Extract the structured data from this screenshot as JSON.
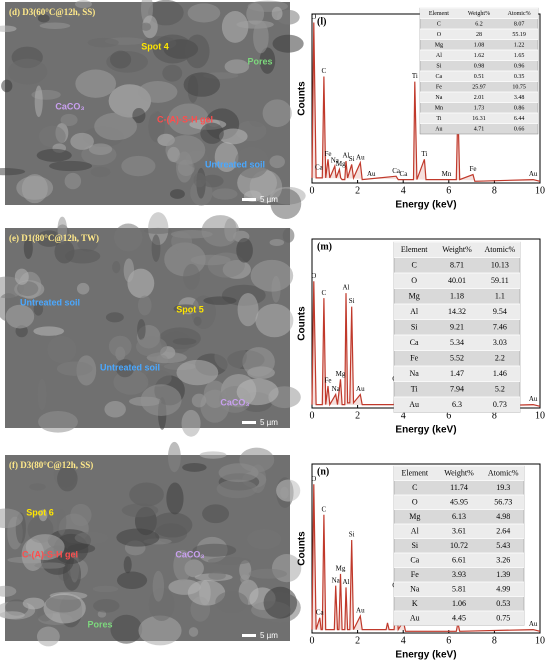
{
  "images": [
    {
      "label": "(d) D3(60°C@12h, SS)",
      "annotations": [
        "Spot 4",
        "Pores",
        "CaCO₃",
        "C-(A)-S-H gel",
        "Untreated soil"
      ],
      "scale_bar": "5 µm"
    },
    {
      "label": "(e) D1(80°C@12h, TW)",
      "annotations": [
        "Untreated soil",
        "Spot 5",
        "Untreated soil",
        "CaCO₃"
      ],
      "scale_bar": "5 µm"
    },
    {
      "label": "(f) D3(80°C@12h, SS)",
      "annotations": [
        "Spot 6",
        "C-(A)-S-H gel",
        "CaCO₃",
        "Pores"
      ],
      "scale_bar": "5 µm"
    }
  ],
  "chart_data": [
    {
      "type": "line",
      "panel": "(l)",
      "xlabel": "Energy (keV)",
      "ylabel": "Counts",
      "color": "#c0392b",
      "xlim": [
        0,
        10
      ],
      "xticks": [
        0,
        2,
        4,
        6,
        8,
        10
      ],
      "ylim": [
        0,
        100
      ],
      "x": [
        0,
        0.08,
        0.18,
        0.45,
        0.52,
        0.6,
        0.7,
        0.78,
        1.0,
        1.06,
        1.2,
        1.26,
        1.32,
        1.44,
        1.49,
        1.56,
        1.74,
        1.82,
        2.12,
        2.2,
        3.69,
        3.78,
        4.45,
        4.51,
        4.6,
        4.93,
        5.0,
        6.33,
        6.4,
        6.48,
        7.06,
        7.14,
        9.7,
        10
      ],
      "values": [
        3,
        95,
        3,
        3,
        63,
        3,
        14,
        3,
        10,
        3,
        8,
        3,
        2,
        2,
        13,
        3,
        11,
        3,
        12,
        2,
        4,
        2,
        2,
        60,
        2,
        14,
        2,
        2,
        45,
        2,
        5,
        1,
        2,
        1
      ],
      "annotations": [
        {
          "text": "O",
          "x": 0.08,
          "y": 95
        },
        {
          "text": "C",
          "x": 0.52,
          "y": 63
        },
        {
          "text": "Ca",
          "x": 0.3,
          "y": 6
        },
        {
          "text": "Fe",
          "x": 0.7,
          "y": 14
        },
        {
          "text": "Na",
          "x": 1.0,
          "y": 10
        },
        {
          "text": "Mg",
          "x": 1.26,
          "y": 8
        },
        {
          "text": "Al",
          "x": 1.49,
          "y": 13
        },
        {
          "text": "Si",
          "x": 1.74,
          "y": 11
        },
        {
          "text": "Au",
          "x": 2.12,
          "y": 12
        },
        {
          "text": "Au",
          "x": 2.6,
          "y": 2
        },
        {
          "text": "Ca",
          "x": 3.69,
          "y": 4
        },
        {
          "text": "Ca",
          "x": 4.01,
          "y": 2
        },
        {
          "text": "Ti",
          "x": 4.51,
          "y": 60
        },
        {
          "text": "Ti",
          "x": 4.93,
          "y": 14
        },
        {
          "text": "Mn",
          "x": 5.9,
          "y": 2
        },
        {
          "text": "Fe",
          "x": 7.06,
          "y": 5
        },
        {
          "text": "Au",
          "x": 9.7,
          "y": 2
        }
      ],
      "table": {
        "columns": [
          "Element",
          "Weight%",
          "Atomic%"
        ],
        "rows": [
          [
            "C",
            6.2,
            8.07
          ],
          [
            "O",
            28,
            55.19
          ],
          [
            "Mg",
            1.08,
            1.22
          ],
          [
            "Al",
            1.62,
            1.65
          ],
          [
            "Si",
            0.98,
            0.96
          ],
          [
            "Ca",
            0.51,
            0.35
          ],
          [
            "Fe",
            25.97,
            10.75
          ],
          [
            "Na",
            2.01,
            3.48
          ],
          [
            "Mn",
            1.73,
            0.86
          ],
          [
            "Ti",
            16.31,
            6.44
          ],
          [
            "Au",
            4.71,
            0.66
          ]
        ]
      }
    },
    {
      "type": "line",
      "panel": "(m)",
      "xlabel": "Energy (keV)",
      "ylabel": "Counts",
      "color": "#c0392b",
      "xlim": [
        0,
        10
      ],
      "xticks": [
        0,
        2,
        4,
        6,
        8,
        10
      ],
      "ylim": [
        0,
        100
      ],
      "x": [
        0,
        0.08,
        0.18,
        0.45,
        0.52,
        0.6,
        0.7,
        0.78,
        1.04,
        1.12,
        1.25,
        1.32,
        1.44,
        1.49,
        1.56,
        1.66,
        1.74,
        1.82,
        2.12,
        2.2,
        3.6,
        3.69,
        3.78,
        4.01,
        4.1,
        4.45,
        4.51,
        4.6,
        4.93,
        5.0,
        6.33,
        6.4,
        6.48,
        7.06,
        7.14,
        9.7,
        10
      ],
      "values": [
        2,
        75,
        2,
        2,
        65,
        2,
        13,
        2,
        8,
        2,
        17,
        2,
        2,
        68,
        3,
        3,
        60,
        3,
        8,
        2,
        2,
        14,
        2,
        6,
        2,
        2,
        16,
        2,
        5,
        1,
        1,
        7,
        1,
        3,
        1,
        2,
        1
      ],
      "annotations": [
        {
          "text": "O",
          "x": 0.08,
          "y": 75
        },
        {
          "text": "C",
          "x": 0.52,
          "y": 65
        },
        {
          "text": "Fe",
          "x": 0.7,
          "y": 13
        },
        {
          "text": "Na",
          "x": 1.04,
          "y": 8
        },
        {
          "text": "Mg",
          "x": 1.25,
          "y": 17
        },
        {
          "text": "Al",
          "x": 1.49,
          "y": 68
        },
        {
          "text": "Si",
          "x": 1.74,
          "y": 60
        },
        {
          "text": "Au",
          "x": 2.12,
          "y": 8
        },
        {
          "text": "Ca",
          "x": 3.69,
          "y": 14
        },
        {
          "text": "Ca",
          "x": 4.01,
          "y": 6
        },
        {
          "text": "Ti",
          "x": 4.51,
          "y": 16
        },
        {
          "text": "Ti",
          "x": 4.93,
          "y": 5
        },
        {
          "text": "Fe",
          "x": 6.4,
          "y": 7
        },
        {
          "text": "Fe",
          "x": 7.06,
          "y": 3
        },
        {
          "text": "Au",
          "x": 9.7,
          "y": 2
        }
      ],
      "table": {
        "columns": [
          "Element",
          "Weight%",
          "Atomic%"
        ],
        "rows": [
          [
            "C",
            8.71,
            10.13
          ],
          [
            "O",
            40.01,
            59.11
          ],
          [
            "Mg",
            1.18,
            1.1
          ],
          [
            "Al",
            14.32,
            9.54
          ],
          [
            "Si",
            9.21,
            7.46
          ],
          [
            "Ca",
            5.34,
            3.03
          ],
          [
            "Fe",
            5.52,
            2.2
          ],
          [
            "Na",
            1.47,
            1.46
          ],
          [
            "Ti",
            7.94,
            5.2
          ],
          [
            "Au",
            6.3,
            0.73
          ]
        ]
      }
    },
    {
      "type": "line",
      "panel": "(n)",
      "xlabel": "Energy (keV)",
      "ylabel": "Counts",
      "color": "#c0392b",
      "xlim": [
        0,
        10
      ],
      "xticks": [
        0,
        2,
        4,
        6,
        8,
        10
      ],
      "ylim": [
        0,
        100
      ],
      "x": [
        0,
        0.08,
        0.18,
        0.34,
        0.4,
        0.45,
        0.52,
        0.6,
        0.98,
        1.04,
        1.12,
        1.18,
        1.25,
        1.32,
        1.44,
        1.49,
        1.56,
        1.66,
        1.74,
        1.82,
        2.12,
        2.2,
        3.25,
        3.31,
        3.38,
        3.6,
        3.69,
        3.78,
        4.01,
        4.1,
        6.33,
        6.4,
        6.48,
        9.7,
        10
      ],
      "values": [
        2,
        88,
        2,
        9,
        2,
        2,
        70,
        2,
        2,
        28,
        2,
        2,
        35,
        2,
        2,
        27,
        2,
        2,
        55,
        2,
        10,
        2,
        2,
        6,
        2,
        2,
        25,
        2,
        7,
        1,
        1,
        6,
        1,
        2,
        1
      ],
      "annotations": [
        {
          "text": "O",
          "x": 0.08,
          "y": 88
        },
        {
          "text": "C",
          "x": 0.52,
          "y": 70
        },
        {
          "text": "Ca",
          "x": 0.34,
          "y": 9
        },
        {
          "text": "Na",
          "x": 1.04,
          "y": 28
        },
        {
          "text": "Mg",
          "x": 1.25,
          "y": 35
        },
        {
          "text": "Al",
          "x": 1.49,
          "y": 27
        },
        {
          "text": "Si",
          "x": 1.74,
          "y": 55
        },
        {
          "text": "Au",
          "x": 2.12,
          "y": 10
        },
        {
          "text": "Ca",
          "x": 3.69,
          "y": 25
        },
        {
          "text": "Ca",
          "x": 4.01,
          "y": 7
        },
        {
          "text": "Fe",
          "x": 6.4,
          "y": 6
        },
        {
          "text": "Au",
          "x": 9.7,
          "y": 2
        }
      ],
      "table": {
        "columns": [
          "Element",
          "Weight%",
          "Atomic%"
        ],
        "rows": [
          [
            "C",
            11.74,
            19.3
          ],
          [
            "O",
            45.95,
            56.73
          ],
          [
            "Mg",
            6.13,
            4.98
          ],
          [
            "Al",
            3.61,
            2.64
          ],
          [
            "Si",
            10.72,
            5.43
          ],
          [
            "Ca",
            6.61,
            3.26
          ],
          [
            "Fe",
            3.93,
            1.39
          ],
          [
            "Na",
            5.81,
            4.99
          ],
          [
            "K",
            1.06,
            0.53
          ],
          [
            "Au",
            4.45,
            0.75
          ]
        ]
      }
    }
  ]
}
